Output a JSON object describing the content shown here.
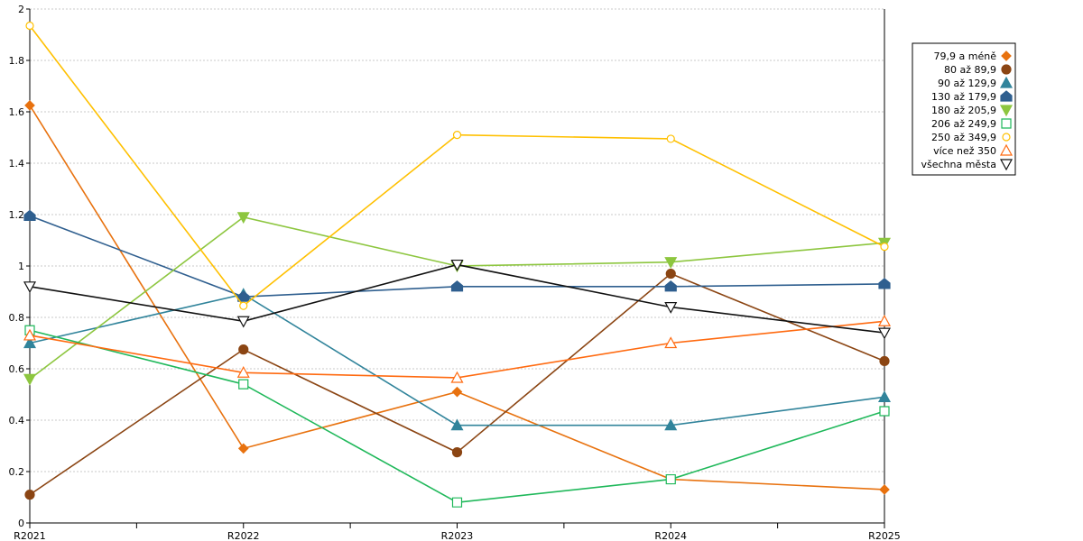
{
  "chart_data": {
    "type": "line",
    "categories": [
      "R2021",
      "R2022",
      "R2023",
      "R2024",
      "R2025"
    ],
    "ylim": [
      0,
      2
    ],
    "yticks": [
      "0",
      "0.2",
      "0.4",
      "0.6",
      "0.8",
      "1",
      "1.2",
      "1.4",
      "1.6",
      "1.8",
      "2"
    ],
    "grid": true,
    "legend_position": "right",
    "series": [
      {
        "name": "79,9 a méně",
        "color": "#e8720f",
        "marker": "diamond",
        "fill": true,
        "values": [
          1.625,
          0.29,
          0.51,
          0.17,
          0.13
        ]
      },
      {
        "name": "80 až 89,9",
        "color": "#8b4513",
        "marker": "circle",
        "fill": true,
        "values": [
          0.11,
          0.675,
          0.275,
          0.97,
          0.63
        ]
      },
      {
        "name": "90 až 129,9",
        "color": "#31849b",
        "marker": "triangle-up",
        "fill": true,
        "values": [
          0.7,
          0.89,
          0.38,
          0.38,
          0.49
        ]
      },
      {
        "name": "130 až 179,9",
        "color": "#2f5f8f",
        "marker": "house",
        "fill": true,
        "values": [
          1.195,
          0.88,
          0.92,
          0.92,
          0.93
        ]
      },
      {
        "name": "180 až 205,9",
        "color": "#8dc63f",
        "marker": "triangle-down",
        "fill": true,
        "values": [
          0.56,
          1.19,
          1.0,
          1.015,
          1.09
        ]
      },
      {
        "name": "206 až 249,9",
        "color": "#1fb85a",
        "marker": "square",
        "fill": false,
        "values": [
          0.75,
          0.54,
          0.08,
          0.17,
          0.435
        ]
      },
      {
        "name": "250 až 349,9",
        "color": "#ffc000",
        "marker": "circle",
        "fill": false,
        "values": [
          1.935,
          0.845,
          1.51,
          1.495,
          1.075
        ]
      },
      {
        "name": "více než 350",
        "color": "#ff6a10",
        "marker": "triangle-up",
        "fill": false,
        "values": [
          0.73,
          0.585,
          0.565,
          0.7,
          0.785
        ]
      },
      {
        "name": "všechna města",
        "color": "#111111",
        "marker": "triangle-down",
        "fill": false,
        "values": [
          0.92,
          0.785,
          1.005,
          0.84,
          0.74
        ]
      }
    ]
  }
}
